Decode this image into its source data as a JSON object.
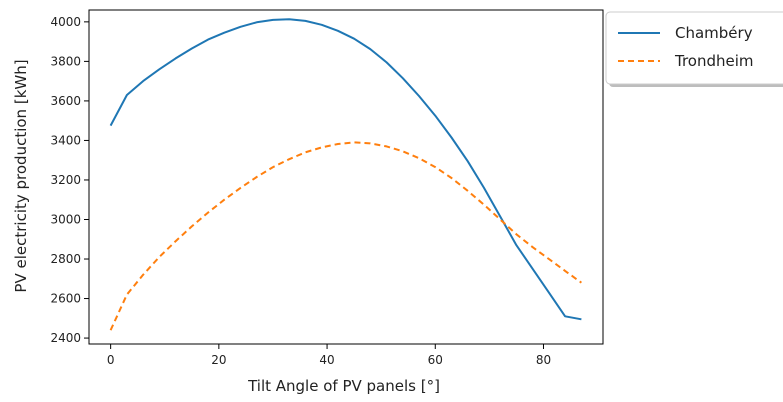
{
  "chart_data": {
    "type": "line",
    "title": "",
    "xlabel": "Tilt Angle of PV panels [°]",
    "ylabel": "PV electricity production [kWh]",
    "xlim": [
      -4,
      91
    ],
    "ylim": [
      2370,
      4060
    ],
    "xticks": [
      0,
      20,
      40,
      60,
      80
    ],
    "yticks": [
      2400,
      2600,
      2800,
      3000,
      3200,
      3400,
      3600,
      3800,
      4000
    ],
    "grid": false,
    "legend_placement": "outside-top-right",
    "series": [
      {
        "name": "Chambéry",
        "color": "#1f77b4",
        "style": "solid",
        "x": [
          0,
          3,
          6,
          9,
          12,
          15,
          18,
          21,
          24,
          27,
          30,
          33,
          36,
          39,
          42,
          45,
          48,
          51,
          54,
          57,
          60,
          63,
          66,
          69,
          72,
          75,
          78,
          81,
          84,
          87
        ],
        "y": [
          3475,
          3630,
          3700,
          3760,
          3815,
          3865,
          3910,
          3945,
          3975,
          3998,
          4010,
          4013,
          4005,
          3985,
          3955,
          3915,
          3862,
          3795,
          3715,
          3625,
          3525,
          3415,
          3295,
          3160,
          3015,
          2870,
          2750,
          2630,
          2510,
          2495
        ]
      },
      {
        "name": "Trondheim",
        "color": "#ff7f0e",
        "style": "dashed",
        "x": [
          0,
          3,
          6,
          9,
          12,
          15,
          18,
          21,
          24,
          27,
          30,
          33,
          36,
          39,
          42,
          45,
          48,
          51,
          54,
          57,
          60,
          63,
          66,
          69,
          72,
          75,
          78,
          81,
          84,
          87
        ],
        "y": [
          2440,
          2620,
          2720,
          2810,
          2890,
          2965,
          3035,
          3100,
          3160,
          3215,
          3265,
          3305,
          3340,
          3365,
          3382,
          3390,
          3385,
          3370,
          3345,
          3310,
          3265,
          3210,
          3145,
          3075,
          3000,
          2925,
          2860,
          2800,
          2740,
          2680
        ]
      }
    ]
  }
}
